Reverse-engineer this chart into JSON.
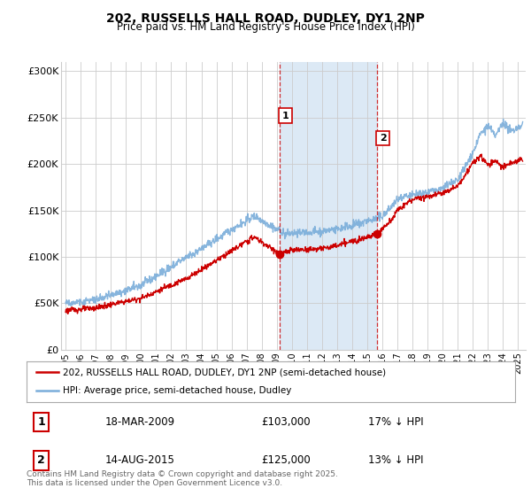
{
  "title": "202, RUSSELLS HALL ROAD, DUDLEY, DY1 2NP",
  "subtitle": "Price paid vs. HM Land Registry's House Price Index (HPI)",
  "hpi_label": "HPI: Average price, semi-detached house, Dudley",
  "property_label": "202, RUSSELLS HALL ROAD, DUDLEY, DY1 2NP (semi-detached house)",
  "hpi_color": "#7aadda",
  "property_color": "#cc0000",
  "shaded_region_color": "#dce9f5",
  "marker1_x": 2009.2,
  "marker2_x": 2015.65,
  "marker1_label": "1",
  "marker2_label": "2",
  "marker1_date": "18-MAR-2009",
  "marker1_price": "£103,000",
  "marker1_hpi": "17% ↓ HPI",
  "marker2_date": "14-AUG-2015",
  "marker2_price": "£125,000",
  "marker2_hpi": "13% ↓ HPI",
  "ylim": [
    0,
    310000
  ],
  "yticks": [
    0,
    50000,
    100000,
    150000,
    200000,
    250000,
    300000
  ],
  "ytick_labels": [
    "£0",
    "£50K",
    "£100K",
    "£150K",
    "£200K",
    "£250K",
    "£300K"
  ],
  "footer": "Contains HM Land Registry data © Crown copyright and database right 2025.\nThis data is licensed under the Open Government Licence v3.0.",
  "bg_color": "#ffffff",
  "grid_color": "#cccccc"
}
